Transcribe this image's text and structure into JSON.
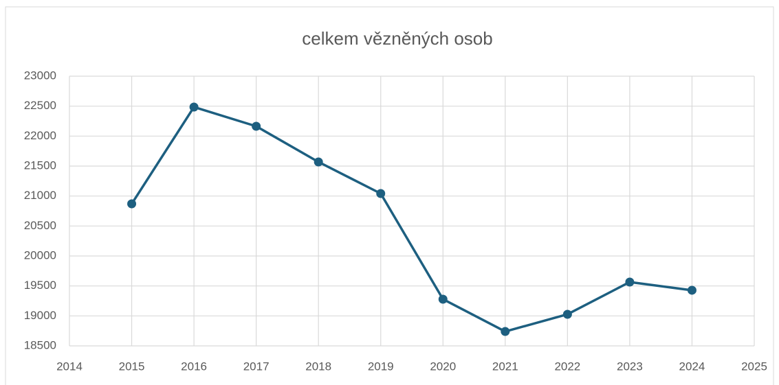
{
  "chart_data": {
    "type": "line",
    "title": "celkem vězněných osob",
    "x": [
      2015,
      2016,
      2017,
      2018,
      2019,
      2020,
      2021,
      2022,
      2023,
      2024
    ],
    "values": [
      20870,
      22485,
      22164,
      21569,
      21042,
      19279,
      18740,
      19027,
      19565,
      19428
    ],
    "color": "#1d5f80",
    "xlim": [
      2014,
      2025
    ],
    "xticks": [
      2014,
      2015,
      2016,
      2017,
      2018,
      2019,
      2020,
      2021,
      2022,
      2023,
      2024,
      2025
    ],
    "ylim": [
      18500,
      23000
    ],
    "yticks": [
      18500,
      19000,
      19500,
      20000,
      20500,
      21000,
      21500,
      22000,
      22500,
      23000
    ],
    "grid": true
  }
}
